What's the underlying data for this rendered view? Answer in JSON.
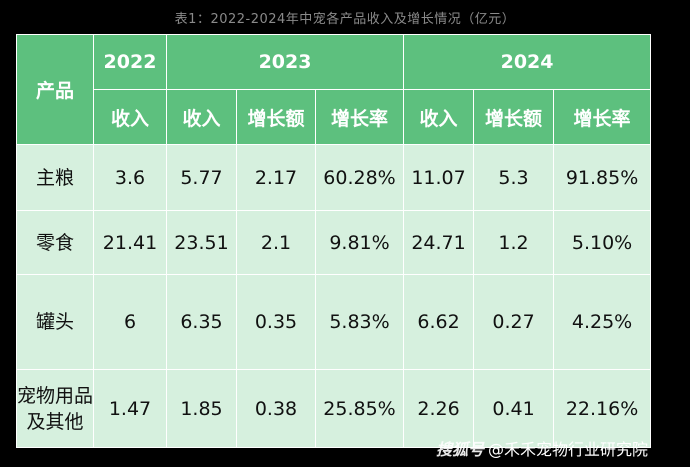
{
  "caption": "表1：2022-2024年中宠各产品收入及增长情况（亿元）",
  "headers": {
    "product": "产品",
    "years": [
      "2022",
      "2023",
      "2024"
    ],
    "revenue": "收入",
    "growth_amount": "增长额",
    "growth_rate": "增长率"
  },
  "rows": [
    {
      "product": "主粮",
      "r2022": "3.6",
      "r2023": "5.77",
      "g2023": "2.17",
      "p2023": "60.28%",
      "r2024": "11.07",
      "g2024": "5.3",
      "p2024": "91.85%"
    },
    {
      "product": "零食",
      "r2022": "21.41",
      "r2023": "23.51",
      "g2023": "2.1",
      "p2023": "9.81%",
      "r2024": "24.71",
      "g2024": "1.2",
      "p2024": "5.10%"
    },
    {
      "product": "罐头",
      "r2022": "6",
      "r2023": "6.35",
      "g2023": "0.35",
      "p2023": "5.83%",
      "r2024": "6.62",
      "g2024": "0.27",
      "p2024": "4.25%"
    },
    {
      "product": "宠物用品及其他",
      "r2022": "1.47",
      "r2023": "1.85",
      "g2023": "0.38",
      "p2023": "25.85%",
      "r2024": "2.26",
      "g2024": "0.41",
      "p2024": "22.16%"
    }
  ],
  "watermark": {
    "logo": "搜狐号",
    "text": "@禾禾宠物行业研究院"
  }
}
